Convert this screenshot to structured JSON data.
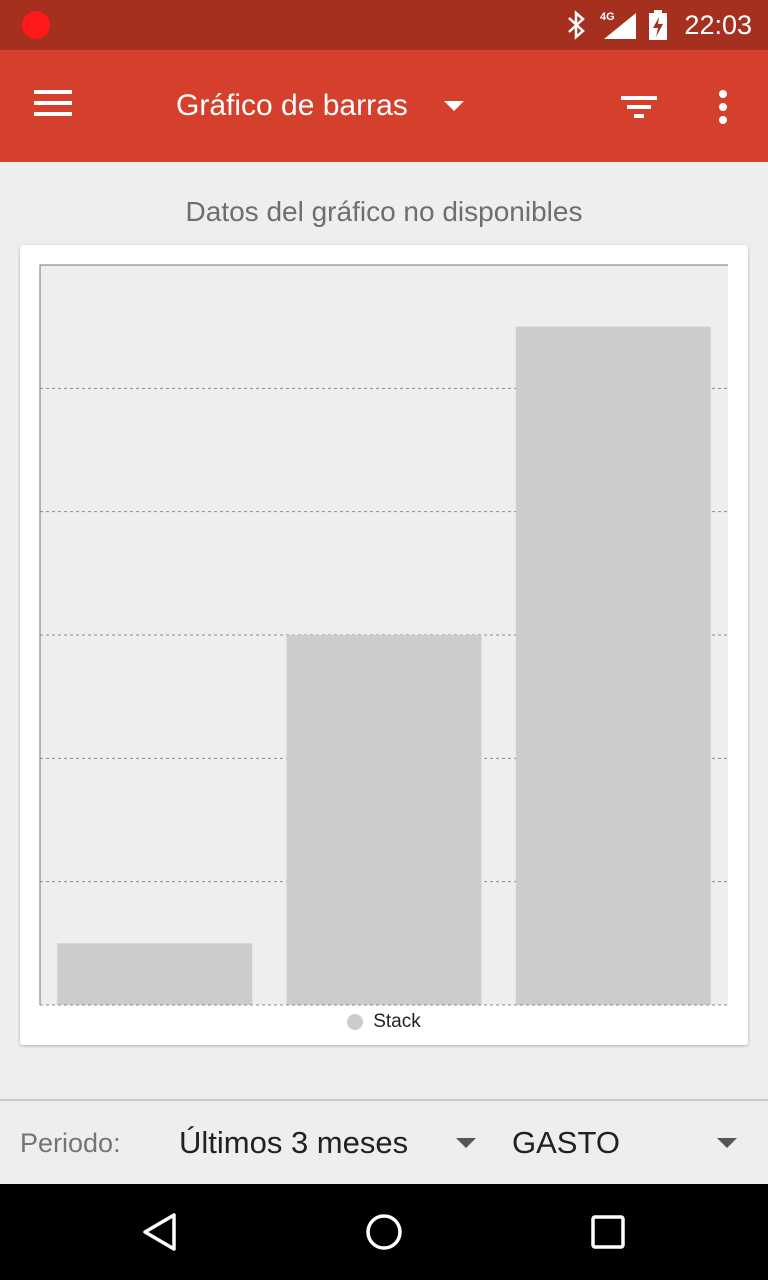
{
  "status_bar": {
    "time": "22:03",
    "network": "4G",
    "icons": [
      "recording-icon",
      "bluetooth-icon",
      "signal-icon",
      "battery-charging-icon"
    ]
  },
  "app_bar": {
    "title": "Gráfico de barras",
    "icons": [
      "menu-icon",
      "dropdown-caret-icon",
      "filter-icon",
      "more-vert-icon"
    ],
    "color": "#d4402b"
  },
  "chart": {
    "message": "Datos del gráfico no disponibles"
  },
  "chart_data": {
    "type": "bar",
    "title": "",
    "xlabel": "",
    "ylabel": "",
    "categories": [
      "",
      "",
      ""
    ],
    "series": [
      {
        "name": "Stack",
        "values": [
          0.5,
          3.0,
          5.5
        ],
        "color": "#cccccc"
      }
    ],
    "ylim": [
      0,
      6
    ],
    "grid": true,
    "legend": "bottom-center"
  },
  "bottom_bar": {
    "period_label": "Periodo:",
    "period_value": "Últimos 3 meses",
    "type_value": "GASTO"
  },
  "nav_bar": {
    "icons": [
      "back-icon",
      "home-icon",
      "recent-apps-icon"
    ]
  }
}
